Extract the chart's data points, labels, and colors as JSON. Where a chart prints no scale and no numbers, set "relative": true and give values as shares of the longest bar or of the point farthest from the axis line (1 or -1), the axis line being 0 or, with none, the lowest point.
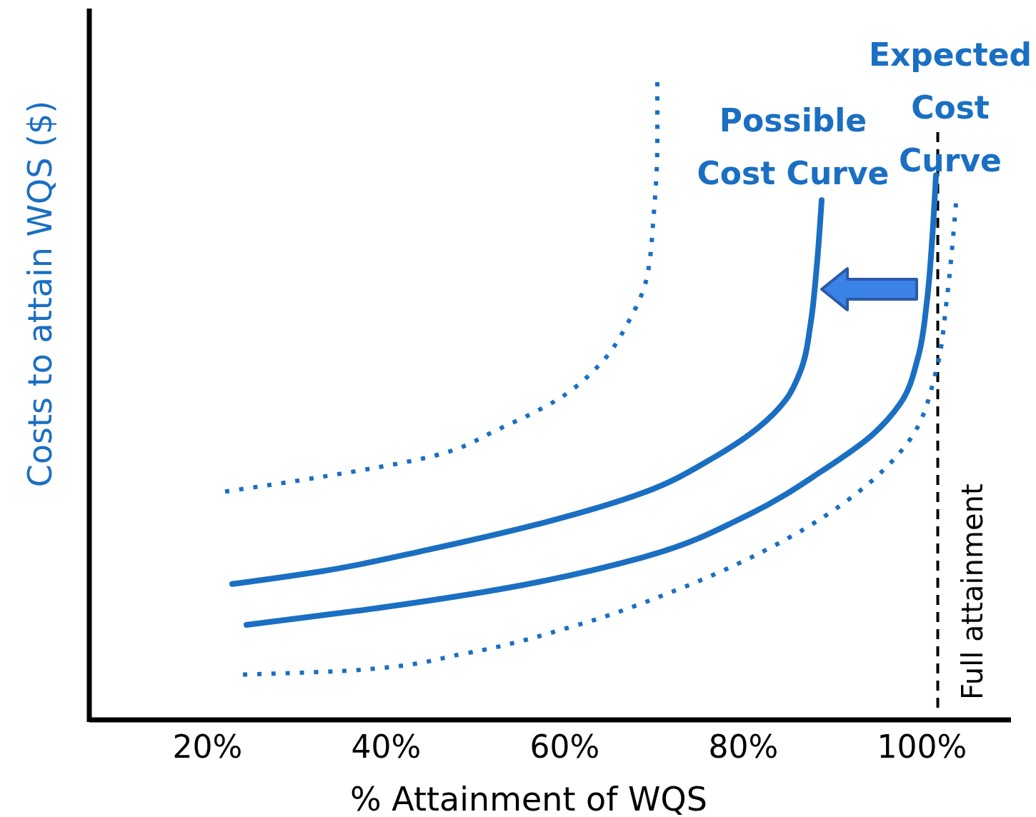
{
  "chart_data": {
    "type": "line",
    "relative": true,
    "xlabel": "% Attainment of WQS",
    "ylabel": "Costs to attain WQS ($)",
    "xlim": [
      6.8,
      110
    ],
    "xticks": [
      {
        "value": 20,
        "label": "20%"
      },
      {
        "value": 40,
        "label": "40%"
      },
      {
        "value": 60,
        "label": "60%"
      },
      {
        "value": 80,
        "label": "80%"
      },
      {
        "value": 100,
        "label": "100%"
      }
    ],
    "grid": false,
    "marker": "none",
    "ref_lines": [
      {
        "axis": "x",
        "value": 101.8,
        "label": "Full attainment",
        "color": "#000000",
        "line_style": "dashed"
      }
    ],
    "series": [
      {
        "name": "Possible Cost Curve",
        "color": "#1a6fc2",
        "line_style": "solid",
        "x": [
          22.8,
          32.8,
          44.8,
          56.8,
          68.8,
          76.8,
          81.6,
          84.8,
          86.4,
          87.6,
          88.2,
          88.8
        ],
        "values": [
          0.213,
          0.233,
          0.267,
          0.306,
          0.356,
          0.412,
          0.457,
          0.502,
          0.546,
          0.625,
          0.703,
          0.815
        ]
      },
      {
        "name": "Expected Cost Curve",
        "color": "#1a6fc2",
        "line_style": "solid",
        "x": [
          24.4,
          36.8,
          52.8,
          68.8,
          80.8,
          88.8,
          94.4,
          97.6,
          99.6,
          100.6,
          101.2,
          101.6
        ],
        "values": [
          0.149,
          0.171,
          0.205,
          0.255,
          0.323,
          0.39,
          0.446,
          0.496,
          0.569,
          0.658,
          0.759,
          0.854
        ]
      },
      {
        "color": "#1a6fc2",
        "line_style": "dotted",
        "x": [
          22,
          32.8,
          44.8,
          52.8,
          59.2,
          64,
          67.2,
          69.2,
          70,
          70.4,
          70.4
        ],
        "values": [
          0.358,
          0.381,
          0.412,
          0.457,
          0.502,
          0.558,
          0.625,
          0.692,
          0.793,
          0.905,
          1
        ]
      },
      {
        "color": "#1a6fc2",
        "line_style": "dotted",
        "x": [
          24,
          36.8,
          48.8,
          60.8,
          72.8,
          84.8,
          92.8,
          98.4,
          101.6,
          102.8,
          103.6,
          103.84
        ],
        "values": [
          0.071,
          0.078,
          0.104,
          0.146,
          0.205,
          0.283,
          0.356,
          0.434,
          0.546,
          0.658,
          0.77,
          0.81
        ]
      }
    ]
  }
}
